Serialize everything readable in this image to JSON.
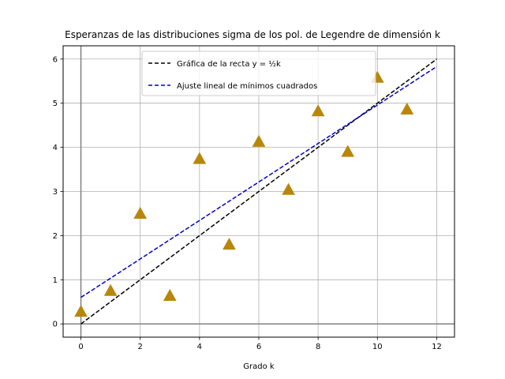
{
  "chart_data": {
    "type": "scatter",
    "title": "Esperanzas de las distribuciones sigma de los pol. de Legendre de dimensión k",
    "xlabel": "Grado k",
    "ylabel": "",
    "xlim": [
      -0.6,
      12.6
    ],
    "ylim": [
      -0.3,
      6.3
    ],
    "xticks": [
      0,
      2,
      4,
      6,
      8,
      10,
      12
    ],
    "yticks": [
      0,
      1,
      2,
      3,
      4,
      5,
      6
    ],
    "grid": true,
    "legend_position": "top-center",
    "points": {
      "marker": "triangle-up",
      "color": "#b8860b",
      "x": [
        0,
        1,
        2,
        3,
        4,
        5,
        6,
        7,
        8,
        9,
        10,
        11
      ],
      "y": [
        0.28,
        0.75,
        2.5,
        0.64,
        3.74,
        1.8,
        4.13,
        3.04,
        4.82,
        3.9,
        5.58,
        4.86
      ]
    },
    "series": [
      {
        "name": "Gráfica de la recta y = ½k",
        "color": "#000000",
        "style": "dashed",
        "x": [
          0,
          12
        ],
        "y": [
          0,
          6
        ]
      },
      {
        "name": "Ajuste lineal de mínimos cuadrados",
        "color": "#0000cc",
        "style": "dashed",
        "x": [
          0,
          12
        ],
        "y": [
          0.6,
          5.83
        ]
      }
    ],
    "reference_lines": {
      "color": "#808080",
      "x": 0,
      "y": 0
    }
  }
}
